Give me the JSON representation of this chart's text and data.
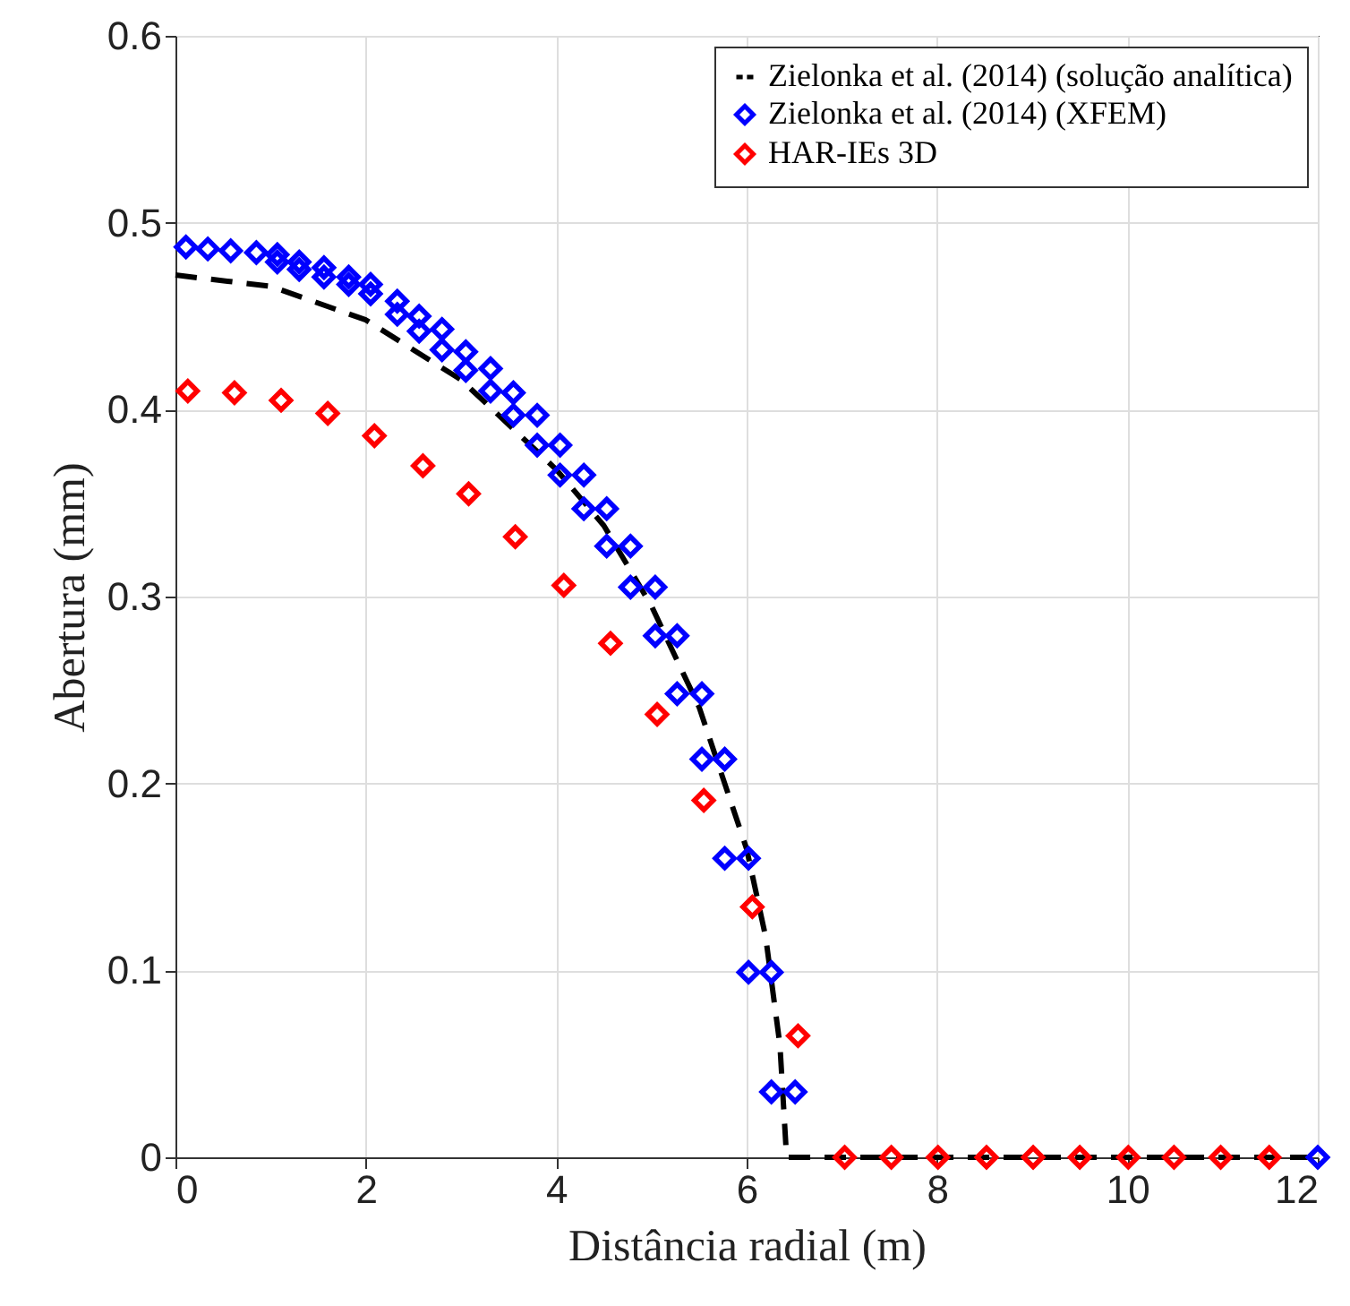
{
  "chart_data": {
    "type": "scatter",
    "xlabel": "Distância radial (m)",
    "ylabel": "Abertura (mm)",
    "xlim": [
      0,
      12
    ],
    "xticks": [
      0,
      2,
      4,
      6,
      8,
      10,
      12
    ],
    "ylim": [
      0,
      0.6
    ],
    "yticks": [
      0,
      0.1,
      0.2,
      0.3,
      0.4,
      0.5,
      0.6
    ],
    "grid": true,
    "legend": "top right",
    "series": [
      {
        "name": "Zielonka et al. (2014) (solução analítica)",
        "type": "line",
        "line_style": "dashed",
        "marker": "none",
        "color": "#000000",
        "x": [
          0,
          1,
          2,
          3,
          4,
          4.5,
          5,
          5.5,
          6,
          6.2,
          6.35,
          6.42,
          7,
          8,
          10,
          12
        ],
        "values": [
          0.472,
          0.466,
          0.448,
          0.416,
          0.368,
          0.338,
          0.295,
          0.241,
          0.165,
          0.118,
          0.06,
          0,
          0,
          0,
          0,
          0
        ]
      },
      {
        "name": "Zielonka et al. (2014) (XFEM)",
        "marker": "diamond",
        "color": "#0000ff",
        "x": [
          0.11,
          0.34,
          0.58,
          0.85,
          1.07,
          1.07,
          1.3,
          1.3,
          1.56,
          1.56,
          1.82,
          1.82,
          2.05,
          2.05,
          2.33,
          2.33,
          2.56,
          2.56,
          2.8,
          2.8,
          3.05,
          3.05,
          3.31,
          3.31,
          3.55,
          3.55,
          3.8,
          3.8,
          4.04,
          4.04,
          4.29,
          4.29,
          4.53,
          4.53,
          4.78,
          4.78,
          5.04,
          5.04,
          5.27,
          5.27,
          5.53,
          5.53,
          5.77,
          5.77,
          6.02,
          6.02,
          6.26,
          6.26,
          6.51,
          12
        ],
        "values": [
          0.487,
          0.486,
          0.485,
          0.484,
          0.483,
          0.479,
          0.479,
          0.475,
          0.476,
          0.471,
          0.471,
          0.467,
          0.467,
          0.462,
          0.458,
          0.451,
          0.45,
          0.442,
          0.443,
          0.432,
          0.431,
          0.421,
          0.422,
          0.41,
          0.409,
          0.397,
          0.397,
          0.381,
          0.381,
          0.365,
          0.365,
          0.347,
          0.347,
          0.327,
          0.327,
          0.305,
          0.305,
          0.279,
          0.279,
          0.248,
          0.248,
          0.213,
          0.213,
          0.16,
          0.16,
          0.099,
          0.099,
          0.035,
          0.035,
          0
        ]
      },
      {
        "name": "HAR-IEs 3D",
        "marker": "diamond",
        "color": "#ff0000",
        "x": [
          0.13,
          0.62,
          1.11,
          1.6,
          2.09,
          2.6,
          3.08,
          3.57,
          4.08,
          4.57,
          5.06,
          5.55,
          6.06,
          6.54,
          7.03,
          7.52,
          8.01,
          8.52,
          9.01,
          9.5,
          10.01,
          10.49,
          10.98,
          11.49
        ],
        "values": [
          0.41,
          0.409,
          0.405,
          0.398,
          0.386,
          0.37,
          0.355,
          0.332,
          0.306,
          0.275,
          0.237,
          0.191,
          0.134,
          0.065,
          0,
          0,
          0,
          0,
          0,
          0,
          0,
          0,
          0,
          0
        ]
      }
    ]
  }
}
